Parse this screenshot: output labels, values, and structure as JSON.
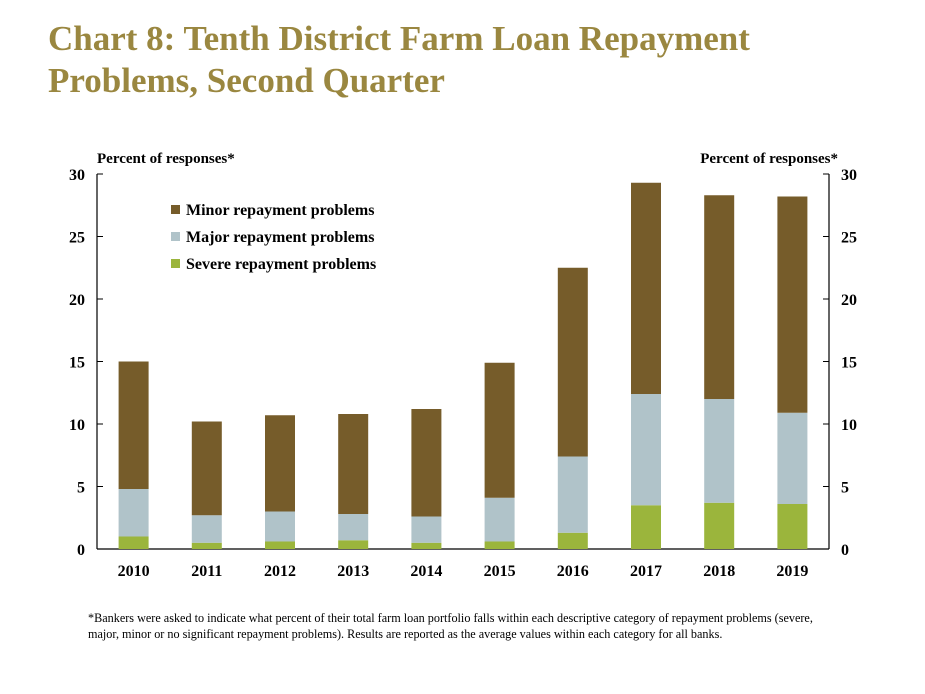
{
  "title_lines": [
    "Chart 8: Tenth District Farm Loan Repayment",
    "Problems, Second Quarter"
  ],
  "footnote": "*Bankers were asked to indicate what percent of their total farm loan portfolio falls within each descriptive category of repayment problems (severe, major, minor or no significant repayment problems). Results are reported as the average values within each category for all banks.",
  "chart_data": {
    "type": "bar",
    "stacked": true,
    "title": "Chart 8: Tenth District Farm Loan Repayment Problems, Second Quarter",
    "ylabel_left": "Percent of responses*",
    "ylabel_right": "Percent of responses*",
    "ylim": [
      0,
      30
    ],
    "yticks": [
      0,
      5,
      10,
      15,
      20,
      25,
      30
    ],
    "grid": false,
    "legend_position": "top-left",
    "categories": [
      "2010",
      "2011",
      "2012",
      "2013",
      "2014",
      "2015",
      "2016",
      "2017",
      "2018",
      "2019"
    ],
    "series": [
      {
        "name": "Severe repayment problems",
        "color": "#9bb53c",
        "values": [
          1.0,
          0.5,
          0.6,
          0.7,
          0.5,
          0.6,
          1.3,
          3.5,
          3.7,
          3.6
        ]
      },
      {
        "name": "Major repayment problems",
        "color": "#b0c3c9",
        "values": [
          3.8,
          2.2,
          2.4,
          2.1,
          2.1,
          3.5,
          6.1,
          8.9,
          8.3,
          7.3
        ]
      },
      {
        "name": "Minor repayment problems",
        "color": "#765c2a",
        "values": [
          10.2,
          7.5,
          7.7,
          8.0,
          8.6,
          10.8,
          15.1,
          16.9,
          16.3,
          17.3
        ]
      }
    ],
    "legend_order": [
      "Minor repayment problems",
      "Major repayment problems",
      "Severe repayment problems"
    ]
  }
}
